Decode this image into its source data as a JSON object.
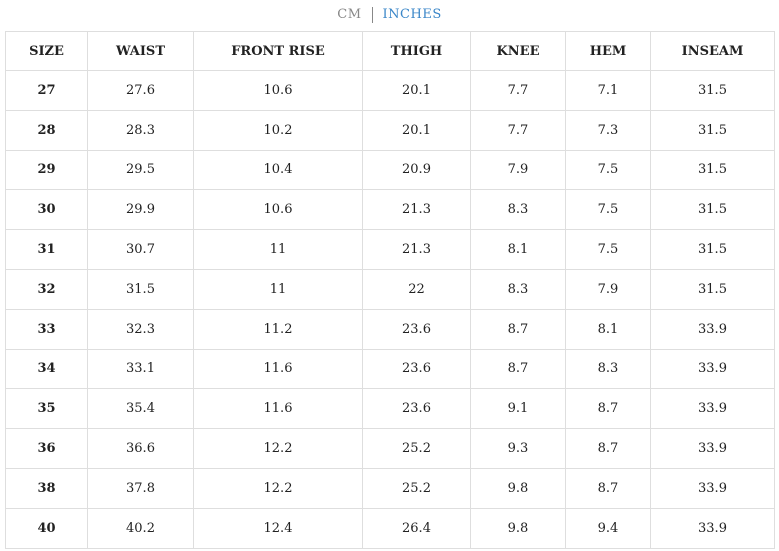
{
  "units": {
    "options": [
      "CM",
      "INCHES"
    ]
  },
  "table": {
    "header": [
      "SIZE",
      "WAIST",
      "FRONT RISE",
      "THIGH",
      "KNEE",
      "HEM",
      "INSEAM"
    ],
    "rows": [
      [
        "27",
        "27.6",
        "10.6",
        "20.1",
        "7.7",
        "7.1",
        "31.5"
      ],
      [
        "28",
        "28.3",
        "10.2",
        "20.1",
        "7.7",
        "7.3",
        "31.5"
      ],
      [
        "29",
        "29.5",
        "10.4",
        "20.9",
        "7.9",
        "7.5",
        "31.5"
      ],
      [
        "30",
        "29.9",
        "10.6",
        "21.3",
        "8.3",
        "7.5",
        "31.5"
      ],
      [
        "31",
        "30.7",
        "11",
        "21.3",
        "8.1",
        "7.5",
        "31.5"
      ],
      [
        "32",
        "31.5",
        "11",
        "22",
        "8.3",
        "7.9",
        "31.5"
      ],
      [
        "33",
        "32.3",
        "11.2",
        "23.6",
        "8.7",
        "8.1",
        "33.9"
      ],
      [
        "34",
        "33.1",
        "11.6",
        "23.6",
        "8.7",
        "8.3",
        "33.9"
      ],
      [
        "35",
        "35.4",
        "11.6",
        "23.6",
        "9.1",
        "8.7",
        "33.9"
      ],
      [
        "36",
        "36.6",
        "12.2",
        "25.2",
        "9.3",
        "8.7",
        "33.9"
      ],
      [
        "38",
        "37.8",
        "12.2",
        "25.2",
        "9.8",
        "8.7",
        "33.9"
      ],
      [
        "40",
        "40.2",
        "12.4",
        "26.4",
        "9.8",
        "9.4",
        "33.9"
      ]
    ]
  }
}
